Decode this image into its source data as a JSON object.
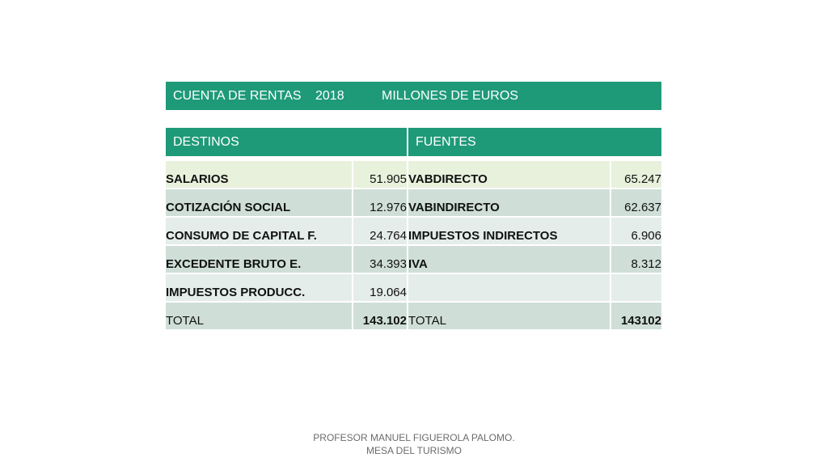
{
  "title_bar": {
    "label": "CUENTA DE RENTAS",
    "year": "2018",
    "units": "MILLONES DE EUROS"
  },
  "headers": {
    "destinos": "DESTINOS",
    "fuentes": "FUENTES"
  },
  "rows": [
    {
      "dest_label": "SALARIOS",
      "dest_value": "51.905",
      "fuen_label": "VABDIRECTO",
      "fuen_value": "65.247"
    },
    {
      "dest_label": "COTIZACIÓN SOCIAL",
      "dest_value": "12.976",
      "fuen_label": "VABINDIRECTO",
      "fuen_value": "62.637"
    },
    {
      "dest_label": "CONSUMO DE CAPITAL F.",
      "dest_value": "24.764",
      "fuen_label": "IMPUESTOS INDIRECTOS",
      "fuen_value": "6.906"
    },
    {
      "dest_label": "EXCEDENTE BRUTO E.",
      "dest_value": "34.393",
      "fuen_label": "IVA",
      "fuen_value": "8.312"
    },
    {
      "dest_label": "IMPUESTOS PRODUCC.",
      "dest_value": "19.064",
      "fuen_label": "",
      "fuen_value": ""
    }
  ],
  "totals": {
    "dest_label": "TOTAL",
    "dest_value": "143.102",
    "fuen_label": "TOTAL",
    "fuen_value": "143102"
  },
  "footer": {
    "line1": "PROFESOR MANUEL FIGUEROLA PALOMO.",
    "line2": "MESA DEL TURISMO"
  },
  "colors": {
    "header_green": "#1e9a78",
    "row_light": "#e8f1dc",
    "row_mid": "#cfdfd8",
    "row_pale": "#e4edea"
  }
}
